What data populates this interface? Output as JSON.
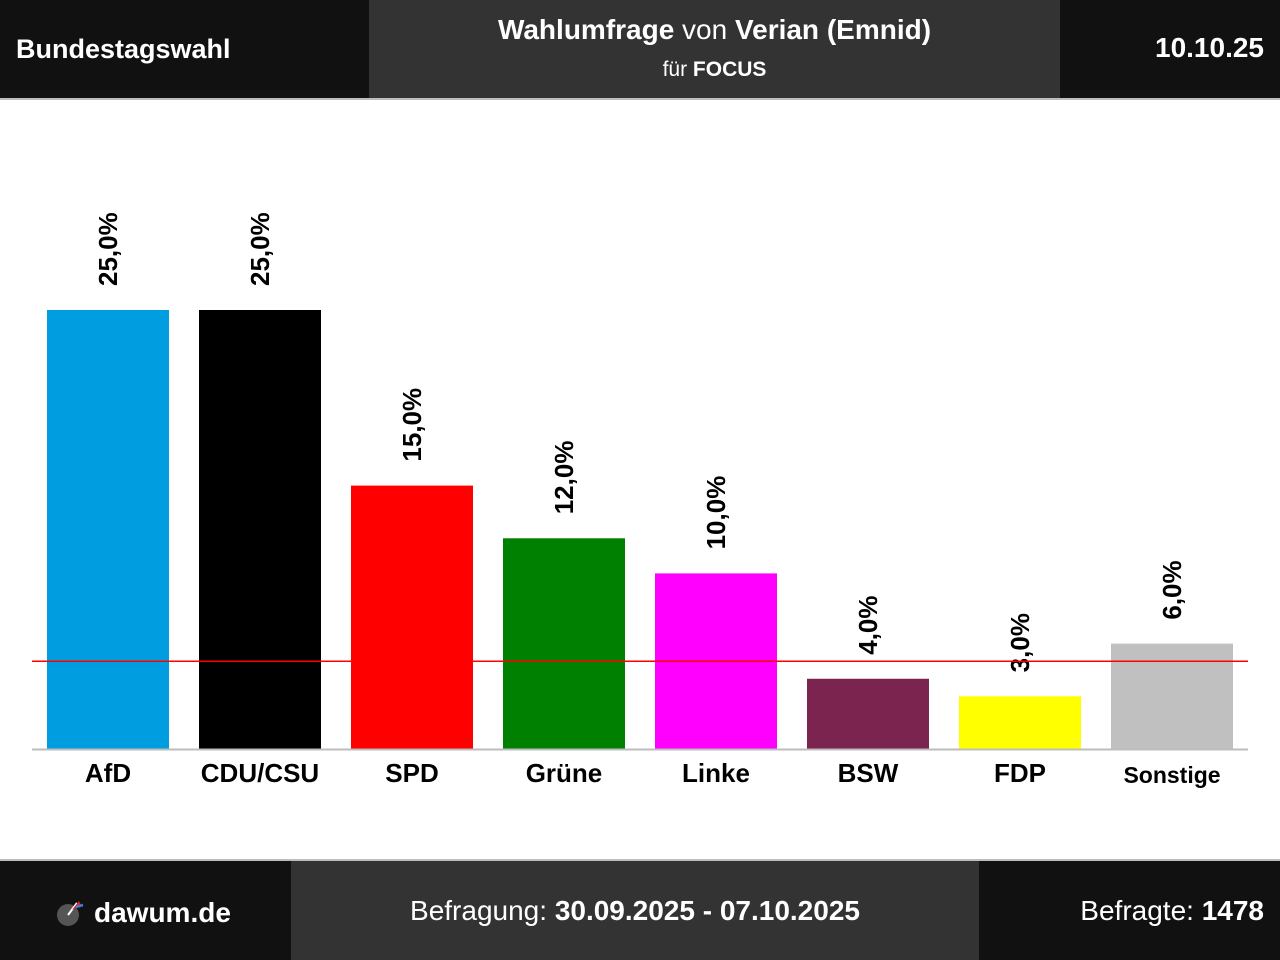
{
  "header": {
    "election": "Bundestagswahl",
    "title_part1": "Wahlumfrage",
    "title_part2": " von ",
    "title_part3": "Verian (Emnid)",
    "subtitle_part1": "für ",
    "subtitle_part2": "FOCUS",
    "date": "10.10.25"
  },
  "footer": {
    "brand": "dawum.de",
    "period_label": "Befragung: ",
    "period_value": "30.09.2025 - 07.10.2025",
    "respondents_label": "Befragte: ",
    "respondents_value": "1478"
  },
  "chart_data": {
    "type": "bar",
    "categories": [
      "AfD",
      "CDU/CSU",
      "SPD",
      "Grüne",
      "Linke",
      "BSW",
      "FDP",
      "Sonstige"
    ],
    "values": [
      25.0,
      25.0,
      15.0,
      12.0,
      10.0,
      4.0,
      3.0,
      6.0
    ],
    "value_labels": [
      "25,0%",
      "25,0%",
      "15,0%",
      "12,0%",
      "10,0%",
      "4,0%",
      "3,0%",
      "6,0%"
    ],
    "colors": [
      "#009ee0",
      "#000000",
      "#ff0000",
      "#008000",
      "#ff00ff",
      "#7b2450",
      "#ffff00",
      "#c0c0c0"
    ],
    "threshold": 5,
    "threshold_color": "#ff0000",
    "ylim": [
      0,
      25
    ],
    "grid": false,
    "title": "",
    "xlabel": "",
    "ylabel": ""
  }
}
